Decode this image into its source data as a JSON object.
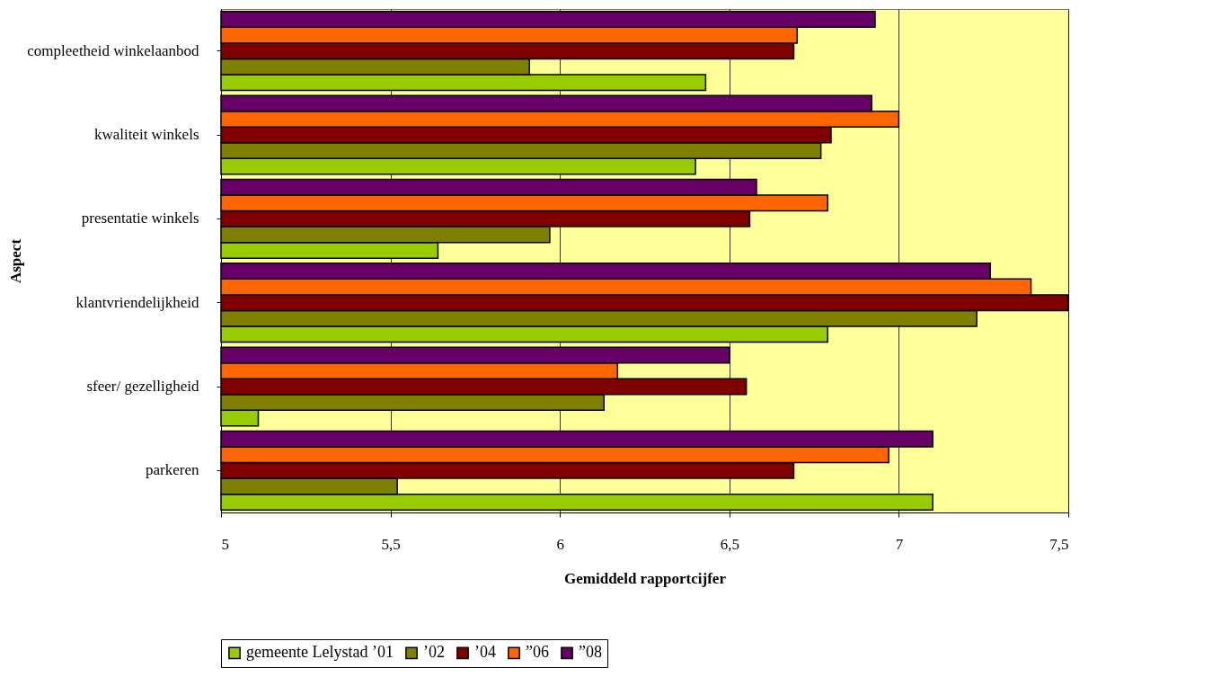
{
  "chart_data": {
    "type": "bar",
    "orientation": "horizontal",
    "xlabel": "Gemiddeld rapportcijfer",
    "ylabel": "Aspect",
    "categories": [
      "compleetheid winkelaanbod",
      "kwaliteit winkels",
      "presentatie winkels",
      "klantvriendelijkheid",
      "sfeer/ gezelligheid",
      "parkeren"
    ],
    "series": [
      {
        "name": "gemeente Lelystad ’01",
        "color": "#99cc00",
        "values": [
          6.43,
          6.4,
          5.64,
          6.79,
          5.11,
          7.1
        ]
      },
      {
        "name": "’02",
        "color": "#808000",
        "values": [
          5.91,
          6.77,
          5.97,
          7.23,
          6.13,
          5.52
        ]
      },
      {
        "name": "’04",
        "color": "#800000",
        "values": [
          6.69,
          6.8,
          6.56,
          7.5,
          6.55,
          6.69
        ]
      },
      {
        "name": "”06",
        "color": "#ff6600",
        "values": [
          6.7,
          7.0,
          6.79,
          7.39,
          6.17,
          6.97
        ]
      },
      {
        "name": "”08",
        "color": "#660066",
        "values": [
          6.93,
          6.92,
          6.58,
          7.27,
          6.5,
          7.1
        ]
      }
    ],
    "xlim": [
      5,
      7.5
    ],
    "xticks": [
      5,
      {
        "value": 5.5,
        "label": "5,5"
      },
      6,
      {
        "value": 6.5,
        "label": "6,5"
      },
      7,
      {
        "value": 7.5,
        "label": "7,5"
      }
    ],
    "grid": "x",
    "legend": "bottom"
  }
}
